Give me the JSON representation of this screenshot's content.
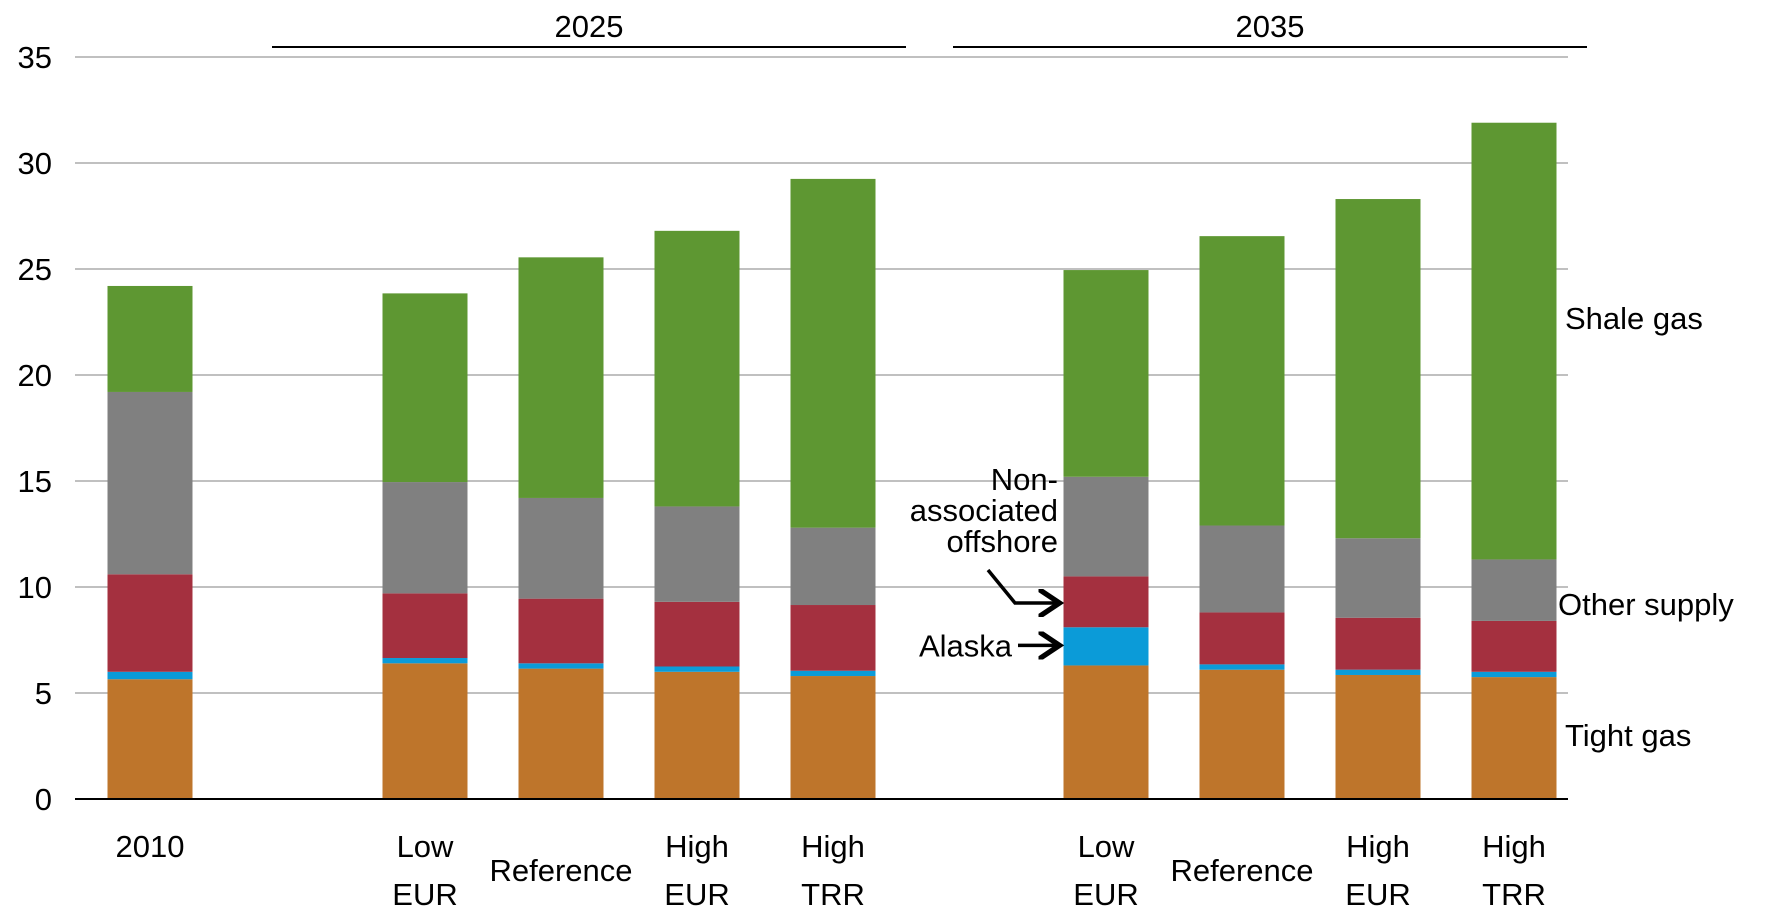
{
  "chart_data": {
    "type": "bar",
    "stacked": true,
    "y_ticks": [
      "0",
      "5",
      "10",
      "15",
      "20",
      "25",
      "30",
      "35"
    ],
    "ylim": [
      0,
      35
    ],
    "grid": true,
    "groups": [
      {
        "label": "2025",
        "category_start": 1,
        "category_end": 4
      },
      {
        "label": "2035",
        "category_start": 5,
        "category_end": 8
      }
    ],
    "categories": [
      {
        "label": [
          "2010"
        ]
      },
      {
        "label": [
          "Low",
          "EUR"
        ]
      },
      {
        "label": [
          "Reference"
        ]
      },
      {
        "label": [
          "High",
          "EUR"
        ]
      },
      {
        "label": [
          "High",
          "TRR"
        ]
      },
      {
        "label": [
          "Low",
          "EUR"
        ]
      },
      {
        "label": [
          "Reference"
        ]
      },
      {
        "label": [
          "High",
          "EUR"
        ]
      },
      {
        "label": [
          "High",
          "TRR"
        ]
      }
    ],
    "series": [
      {
        "key": "tight",
        "color": "#BE752B",
        "values": [
          5.65,
          6.4,
          6.15,
          6.0,
          5.8,
          6.3,
          6.1,
          5.85,
          5.75
        ]
      },
      {
        "key": "alaska",
        "color": "#0B9BD8",
        "values": [
          0.35,
          0.25,
          0.25,
          0.25,
          0.25,
          1.8,
          0.25,
          0.25,
          0.25
        ]
      },
      {
        "key": "nonassoc",
        "color": "#A4303F",
        "values": [
          4.6,
          3.05,
          3.05,
          3.05,
          3.1,
          2.4,
          2.45,
          2.45,
          2.4
        ]
      },
      {
        "key": "other",
        "color": "#808080",
        "values": [
          8.6,
          5.25,
          4.75,
          4.5,
          3.65,
          4.7,
          4.1,
          3.75,
          2.9
        ]
      },
      {
        "key": "shale",
        "color": "#5E9732",
        "values": [
          5.0,
          8.9,
          11.35,
          13.0,
          16.45,
          9.75,
          13.65,
          16.0,
          20.6
        ]
      }
    ],
    "right_labels": [
      {
        "series": "shale",
        "text": "Shale gas"
      },
      {
        "series": "other",
        "text": "Other supply"
      },
      {
        "series": "tight",
        "text": "Tight gas"
      }
    ],
    "annotations": [
      {
        "series": "nonassoc",
        "category": 5,
        "lines": [
          "Non-",
          "associated",
          "offshore"
        ]
      },
      {
        "series": "alaska",
        "category": 5,
        "lines": [
          "Alaska"
        ]
      }
    ]
  }
}
